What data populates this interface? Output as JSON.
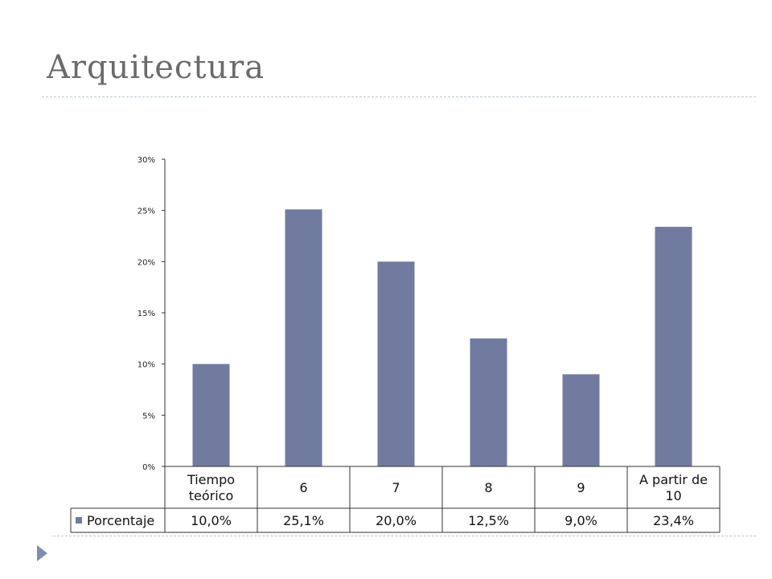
{
  "slide": {
    "title": "Arquitectura"
  },
  "chart_data": {
    "type": "bar",
    "categories": [
      [
        "Tiempo",
        "teórico"
      ],
      [
        "6"
      ],
      [
        "7"
      ],
      [
        "8"
      ],
      [
        "9"
      ],
      [
        "A partir de",
        "10"
      ]
    ],
    "series": [
      {
        "name": "Porcentaje",
        "values": [
          10.0,
          25.1,
          20.0,
          12.5,
          9.0,
          23.4
        ],
        "value_labels": [
          "10,0%",
          "25,1%",
          "20,0%",
          "12,5%",
          "9,0%",
          "23,4%"
        ],
        "color": "#717b9f"
      }
    ],
    "y_ticks": [
      0,
      5,
      10,
      15,
      20,
      25,
      30
    ],
    "y_tick_labels": [
      "0%",
      "5%",
      "10%",
      "15%",
      "20%",
      "25%",
      "30%"
    ],
    "ylim": [
      0,
      30
    ],
    "grid": false,
    "legend": "data-table-left",
    "data_table": true
  },
  "colors": {
    "title": "#6b6b6b",
    "accent": "#7e8db6",
    "bar": "#717b9f"
  }
}
